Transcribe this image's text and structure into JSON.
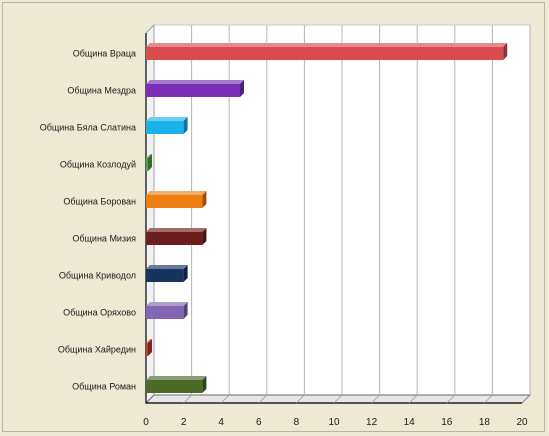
{
  "chart_data": {
    "type": "bar",
    "orientation": "horizontal",
    "style": "3d",
    "categories": [
      "Община Враца",
      "Община Мездра",
      "Община Бяла Слатина",
      "Община Козлодуй",
      "Община Борован",
      "Община Мизия",
      "Община Криводол",
      "Община Оряхово",
      "Община Хайредин",
      "Община Роман"
    ],
    "values": [
      19,
      5,
      2,
      0,
      3,
      3,
      2,
      2,
      0,
      3
    ],
    "colors": [
      "#d94b4f",
      "#7b2fb6",
      "#1ab2ea",
      "#55a24a",
      "#ee7d12",
      "#6e1d1d",
      "#17345e",
      "#8266b4",
      "#c0392b",
      "#4b6a2a"
    ],
    "xlim": [
      0,
      20
    ],
    "xticks": [
      0,
      2,
      4,
      6,
      8,
      10,
      12,
      14,
      16,
      18,
      20
    ],
    "grid": true,
    "legend": "none",
    "title": "",
    "xlabel": "",
    "ylabel": ""
  }
}
